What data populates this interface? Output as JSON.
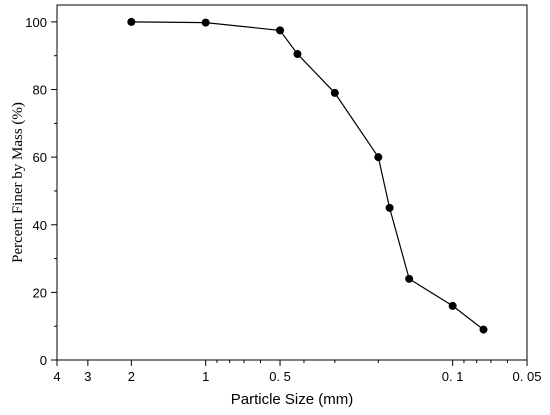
{
  "chart_data": {
    "type": "line",
    "xlabel": "Particle Size (mm)",
    "ylabel": "Percent Finer by Mass (%)",
    "x_scale": "log",
    "x_reversed": true,
    "xlim": [
      4,
      0.05
    ],
    "ylim": [
      0,
      105
    ],
    "x_ticks": [
      4,
      3,
      2,
      1,
      0.5,
      0.1,
      0.05
    ],
    "x_tick_labels": [
      "4",
      "3",
      "2",
      "1",
      "0. 5",
      "0. 1",
      "0. 05"
    ],
    "x_minor_ticks": [
      0.9,
      0.8,
      0.7,
      0.6,
      0.4,
      0.3,
      0.2,
      0.09,
      0.08,
      0.07,
      0.06
    ],
    "y_ticks": [
      0,
      20,
      40,
      60,
      80,
      100
    ],
    "y_tick_labels": [
      "0",
      "20",
      "40",
      "60",
      "80",
      "100"
    ],
    "grid": false,
    "marker": "circle",
    "color": "#000000",
    "series": [
      {
        "x": [
          2,
          1,
          0.5,
          0.425,
          0.3,
          0.2,
          0.18,
          0.15,
          0.1,
          0.075
        ],
        "y": [
          100,
          99.8,
          97.5,
          90.5,
          79,
          60,
          45,
          24,
          16,
          9
        ]
      }
    ]
  }
}
